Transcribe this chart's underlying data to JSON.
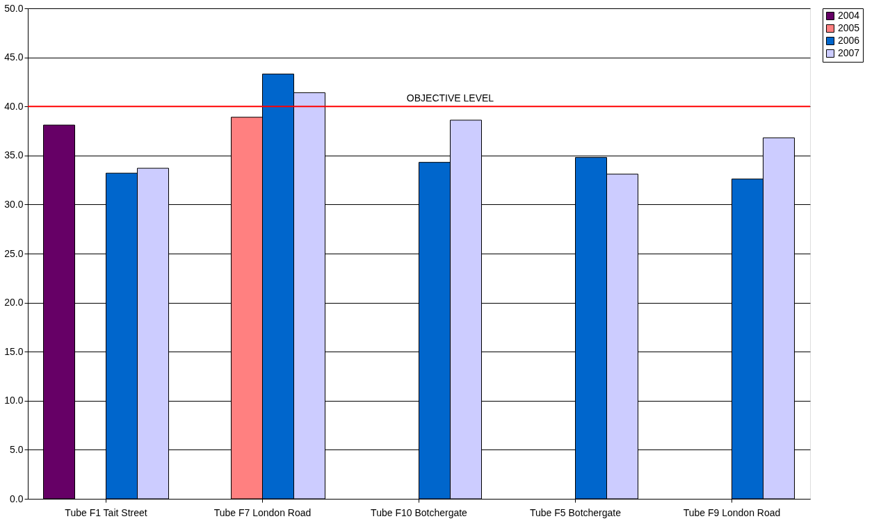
{
  "chart_data": {
    "type": "bar",
    "categories": [
      "Tube F1 Tait Street",
      "Tube F7 London Road",
      "Tube F10 Botchergate",
      "Tube F5 Botchergate",
      "Tube F9 London Road"
    ],
    "series": [
      {
        "name": "2004",
        "color": "#660066",
        "values": [
          38.1,
          null,
          null,
          null,
          null
        ]
      },
      {
        "name": "2005",
        "color": "#ff8080",
        "values": [
          null,
          38.9,
          null,
          null,
          null
        ]
      },
      {
        "name": "2006",
        "color": "#0066cc",
        "values": [
          33.2,
          43.3,
          34.3,
          34.8,
          32.6
        ]
      },
      {
        "name": "2007",
        "color": "#ccccff",
        "values": [
          33.7,
          41.4,
          38.6,
          33.1,
          36.8
        ]
      }
    ],
    "ylim": [
      0,
      50
    ],
    "yticks": [
      {
        "value": 0,
        "label": "0.0"
      },
      {
        "value": 5,
        "label": "5.0"
      },
      {
        "value": 10,
        "label": "10.0"
      },
      {
        "value": 15,
        "label": "15.0"
      },
      {
        "value": 20,
        "label": "20.0"
      },
      {
        "value": 25,
        "label": "25.0"
      },
      {
        "value": 30,
        "label": "30.0"
      },
      {
        "value": 35,
        "label": "35.0"
      },
      {
        "value": 40,
        "label": "40.0"
      },
      {
        "value": 45,
        "label": "45.0"
      },
      {
        "value": 50,
        "label": "50.0"
      }
    ],
    "ref_lines": [
      {
        "axis": "y",
        "value": 40,
        "label": "OBJECTIVE LEVEL",
        "color": "#ff0000"
      }
    ],
    "grid": "y",
    "legend": "right"
  }
}
